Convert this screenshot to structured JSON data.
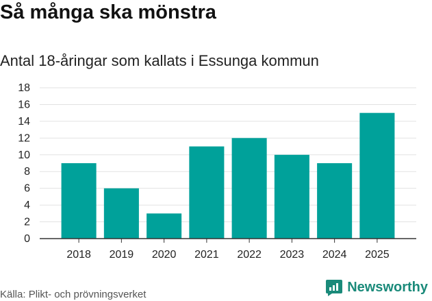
{
  "title": "Så många ska mönstra",
  "subtitle": "Antal 18-åringar som kallats i Essunga kommun",
  "source": "Källa: Plikt- och prövningsverket",
  "brand": {
    "name": "Newsworthy",
    "icon": "newsworthy-logo-icon"
  },
  "colors": {
    "bar": "#00a19a",
    "grid": "#e2e2e2",
    "axis": "#333333",
    "brand": "#1a8a7a"
  },
  "chart_data": {
    "type": "bar",
    "title": "Så många ska mönstra",
    "subtitle": "Antal 18-åringar som kallats i Essunga kommun",
    "categories": [
      "2018",
      "2019",
      "2020",
      "2021",
      "2022",
      "2023",
      "2024",
      "2025"
    ],
    "values": [
      9,
      6,
      3,
      11,
      12,
      10,
      9,
      15
    ],
    "xlabel": "",
    "ylabel": "",
    "ylim": [
      0,
      18
    ],
    "yticks": [
      0,
      2,
      4,
      6,
      8,
      10,
      12,
      14,
      16,
      18
    ],
    "grid": true,
    "legend": "none"
  }
}
